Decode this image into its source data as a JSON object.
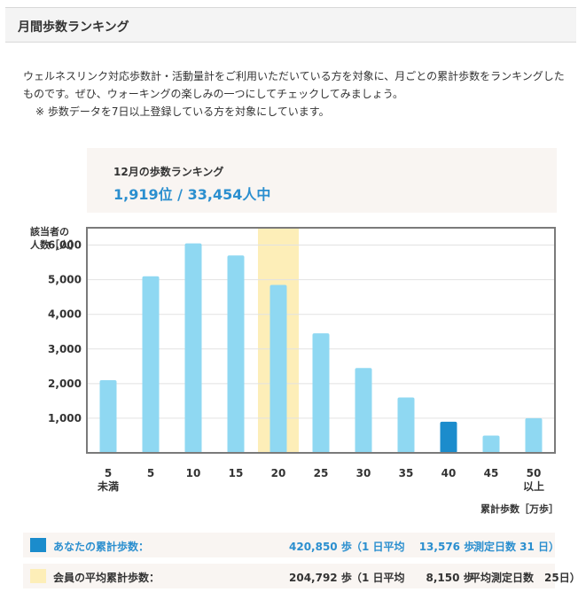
{
  "header": {
    "title": "月間歩数ランキング"
  },
  "intro": {
    "text": "ウェルネスリンク対応歩数計・活動量計をご利用いただいている方を対象に、月ごとの累計歩数をランキングしたものです。ぜひ、ウォーキングの楽しみの一つにしてチェックしてみましょう。",
    "note": "※ 歩数データを7日以上登録している方を対象にしています。"
  },
  "ranking": {
    "month_label": "12月の歩数ランキング",
    "rank_text": "1,919位 / 33,454人中"
  },
  "colors": {
    "bar": "#8fd8f2",
    "user_bar": "#1b8ccc",
    "highlight": "#fdeeb8",
    "accent": "#2b8fcf"
  },
  "chart_data": {
    "type": "bar",
    "ylabel_line1": "該当者の",
    "ylabel_line2": "人数［人］",
    "xlabel": "累計歩数［万歩］",
    "ylim": [
      0,
      6500
    ],
    "yticks": [
      1000,
      2000,
      3000,
      4000,
      5000,
      6000
    ],
    "ytick_labels": [
      "1,000",
      "2,000",
      "3,000",
      "4,000",
      "5,000",
      "6,000"
    ],
    "categories": [
      [
        "5",
        "未満"
      ],
      [
        "5"
      ],
      [
        "10"
      ],
      [
        "15"
      ],
      [
        "20"
      ],
      [
        "25"
      ],
      [
        "30"
      ],
      [
        "35"
      ],
      [
        "40"
      ],
      [
        "45"
      ],
      [
        "50",
        "以上"
      ]
    ],
    "values": [
      2100,
      5100,
      6050,
      5700,
      4850,
      3450,
      2450,
      1600,
      900,
      500,
      1000
    ],
    "highlight_index": 4,
    "user_index": 8
  },
  "legend": {
    "user": {
      "label": "あなたの累計歩数：",
      "steps": "420,850 歩",
      "daily": "（1 日平均　 13,576 歩",
      "days": "測定日数 31 日）"
    },
    "average": {
      "label": "会員の平均累計歩数：",
      "steps": "204,792 歩",
      "daily": "（1 日平均　　8,150 歩",
      "days": "平均測定日数　25日）"
    }
  }
}
